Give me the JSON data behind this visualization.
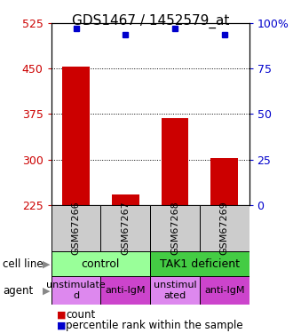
{
  "title": "GDS1467 / 1452579_at",
  "samples": [
    "GSM67266",
    "GSM67267",
    "GSM67268",
    "GSM67269"
  ],
  "counts": [
    453,
    242,
    368,
    302
  ],
  "percentiles": [
    97,
    94,
    97,
    94
  ],
  "ymin": 225,
  "ymax": 525,
  "yticks": [
    225,
    300,
    375,
    450,
    525
  ],
  "y_right_ticks": [
    0,
    25,
    50,
    75,
    100
  ],
  "y_right_labels": [
    "0",
    "25",
    "50",
    "75",
    "100%"
  ],
  "bar_color": "#cc0000",
  "dot_color": "#0000cc",
  "bar_width": 0.55,
  "cell_line_labels": [
    "control",
    "TAK1 deficient"
  ],
  "cell_line_spans": [
    [
      0,
      2
    ],
    [
      2,
      4
    ]
  ],
  "cell_line_color_light": "#99ff99",
  "cell_line_color_dark": "#44cc44",
  "agent_labels": [
    "unstimulate\nd",
    "anti-IgM",
    "unstimul\nated",
    "anti-IgM"
  ],
  "agent_color_light": "#dd88ee",
  "agent_color_dark": "#cc44cc",
  "sample_box_color": "#cccccc",
  "legend_count_color": "#cc0000",
  "legend_pct_color": "#0000cc",
  "axis_color_left": "#cc0000",
  "axis_color_right": "#0000cc",
  "background_color": "#ffffff",
  "title_fontsize": 11,
  "tick_fontsize": 9,
  "sample_fontsize": 8,
  "cell_line_fontsize": 9,
  "agent_fontsize": 8,
  "legend_fontsize": 8.5
}
